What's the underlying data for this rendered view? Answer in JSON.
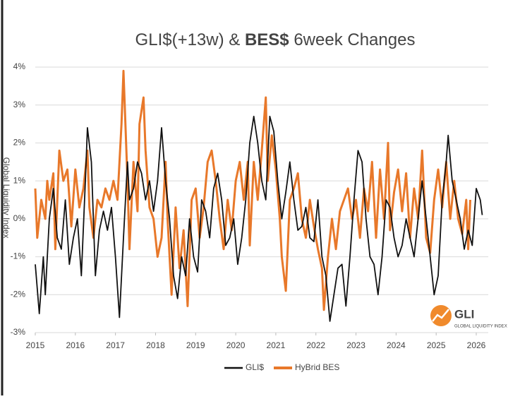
{
  "chart_data": {
    "type": "line",
    "title": {
      "prefix": "GLI$(+13w) &",
      "bold": "BES$",
      "suffix": "6week Changes"
    },
    "ylabel": "Global Liquidity Index",
    "logo": {
      "mark": "GLI",
      "caption": "GLOBAL LIQUIDITY INDEX"
    },
    "xlim": [
      2015,
      2026.3
    ],
    "xticks": [
      2015,
      2016,
      2017,
      2018,
      2019,
      2020,
      2021,
      2022,
      2023,
      2024,
      2025,
      2026
    ],
    "ylim": [
      -3,
      4
    ],
    "yticks": [
      {
        "value": -3,
        "label": "-3%"
      },
      {
        "value": -2,
        "label": "-2%"
      },
      {
        "value": -1,
        "label": "-1%"
      },
      {
        "value": 0,
        "label": "0%"
      },
      {
        "value": 1,
        "label": "1%"
      },
      {
        "value": 2,
        "label": "2%"
      },
      {
        "value": 3,
        "label": "3%"
      },
      {
        "value": 4,
        "label": "4%"
      }
    ],
    "grid": true,
    "legend": "bottom",
    "series": [
      {
        "name": "GLI$",
        "color": "#111111",
        "x": [
          2015.0,
          2015.1,
          2015.2,
          2015.25,
          2015.35,
          2015.45,
          2015.55,
          2015.65,
          2015.75,
          2015.85,
          2015.95,
          2016.05,
          2016.15,
          2016.25,
          2016.3,
          2016.4,
          2016.5,
          2016.6,
          2016.7,
          2016.8,
          2016.9,
          2017.0,
          2017.1,
          2017.2,
          2017.3,
          2017.35,
          2017.45,
          2017.55,
          2017.65,
          2017.75,
          2017.85,
          2017.95,
          2018.05,
          2018.15,
          2018.25,
          2018.35,
          2018.45,
          2018.55,
          2018.65,
          2018.75,
          2018.85,
          2018.95,
          2019.05,
          2019.15,
          2019.25,
          2019.35,
          2019.45,
          2019.55,
          2019.65,
          2019.75,
          2019.85,
          2019.95,
          2020.05,
          2020.15,
          2020.25,
          2020.35,
          2020.45,
          2020.55,
          2020.65,
          2020.75,
          2020.85,
          2020.95,
          2021.05,
          2021.15,
          2021.25,
          2021.35,
          2021.45,
          2021.55,
          2021.65,
          2021.75,
          2021.85,
          2021.95,
          2022.05,
          2022.15,
          2022.25,
          2022.35,
          2022.45,
          2022.55,
          2022.65,
          2022.75,
          2022.85,
          2022.95,
          2023.05,
          2023.15,
          2023.25,
          2023.35,
          2023.45,
          2023.55,
          2023.65,
          2023.75,
          2023.85,
          2023.95,
          2024.05,
          2024.15,
          2024.25,
          2024.35,
          2024.45,
          2024.55,
          2024.65,
          2024.75,
          2024.85,
          2024.95,
          2025.05,
          2025.15,
          2025.25,
          2025.3,
          2025.4,
          2025.5,
          2025.6,
          2025.7,
          2025.8,
          2025.9,
          2026.0,
          2026.1,
          2026.15
        ],
        "values": [
          -1.2,
          -2.5,
          -1.0,
          -2.0,
          0.0,
          0.8,
          -0.5,
          -0.8,
          0.5,
          -1.2,
          -0.5,
          0.0,
          -1.5,
          1.0,
          2.4,
          1.5,
          -1.5,
          -0.3,
          0.2,
          -0.3,
          0.3,
          -1.0,
          -2.6,
          -0.5,
          1.5,
          0.5,
          0.8,
          1.5,
          1.2,
          0.5,
          1.0,
          0.2,
          1.0,
          2.4,
          1.0,
          0.0,
          -1.5,
          -2.1,
          -1.0,
          -1.5,
          0.0,
          -1.0,
          -1.4,
          0.5,
          0.2,
          -0.5,
          0.8,
          1.2,
          0.5,
          -0.7,
          -0.5,
          0.0,
          -1.2,
          -0.5,
          0.5,
          2.0,
          2.7,
          2.0,
          1.0,
          0.5,
          2.7,
          2.3,
          1.0,
          0.0,
          0.7,
          1.5,
          0.5,
          -0.3,
          -0.2,
          0.3,
          -0.5,
          -0.6,
          0.5,
          -1.0,
          -1.5,
          -2.7,
          -2.0,
          -1.3,
          -1.2,
          -2.3,
          -1.0,
          0.5,
          1.8,
          1.5,
          0.0,
          -1.0,
          -1.2,
          -2.0,
          -1.0,
          0.5,
          0.3,
          -0.5,
          -1.0,
          -0.7,
          0.0,
          -0.5,
          -1.0,
          0.0,
          1.0,
          0.0,
          -1.0,
          -2.0,
          -1.5,
          0.5,
          1.5,
          2.2,
          1.0,
          0.5,
          0.0,
          -0.8,
          -0.3,
          -0.7,
          0.8,
          0.5,
          0.1
        ]
      },
      {
        "name": "HyBrid BES",
        "color": "#e8782a",
        "x": [
          2015.0,
          2015.05,
          2015.15,
          2015.25,
          2015.3,
          2015.35,
          2015.45,
          2015.5,
          2015.6,
          2015.7,
          2015.8,
          2015.9,
          2016.0,
          2016.1,
          2016.2,
          2016.3,
          2016.35,
          2016.45,
          2016.55,
          2016.65,
          2016.75,
          2016.85,
          2016.95,
          2017.05,
          2017.15,
          2017.2,
          2017.3,
          2017.35,
          2017.45,
          2017.55,
          2017.6,
          2017.7,
          2017.75,
          2017.85,
          2017.95,
          2018.05,
          2018.15,
          2018.25,
          2018.3,
          2018.4,
          2018.5,
          2018.6,
          2018.7,
          2018.8,
          2018.9,
          2019.0,
          2019.1,
          2019.2,
          2019.3,
          2019.4,
          2019.5,
          2019.6,
          2019.7,
          2019.8,
          2019.9,
          2020.0,
          2020.1,
          2020.2,
          2020.3,
          2020.35,
          2020.45,
          2020.55,
          2020.65,
          2020.75,
          2020.8,
          2020.9,
          2021.0,
          2021.1,
          2021.15,
          2021.25,
          2021.35,
          2021.45,
          2021.55,
          2021.65,
          2021.75,
          2021.85,
          2021.95,
          2022.05,
          2022.15,
          2022.2,
          2022.3,
          2022.4,
          2022.5,
          2022.6,
          2022.7,
          2022.8,
          2022.9,
          2023.0,
          2023.1,
          2023.2,
          2023.3,
          2023.4,
          2023.5,
          2023.6,
          2023.7,
          2023.8,
          2023.85,
          2023.95,
          2024.05,
          2024.15,
          2024.25,
          2024.35,
          2024.45,
          2024.55,
          2024.65,
          2024.75,
          2024.85,
          2024.95,
          2025.05,
          2025.15,
          2025.25,
          2025.35,
          2025.45,
          2025.55,
          2025.65,
          2025.75,
          2025.8,
          2025.85
        ],
        "values": [
          0.8,
          -0.5,
          0.5,
          0.0,
          1.0,
          0.5,
          1.2,
          -0.8,
          1.8,
          1.0,
          1.3,
          -0.2,
          1.3,
          0.3,
          0.8,
          1.8,
          0.3,
          -0.5,
          0.5,
          0.3,
          0.8,
          0.5,
          1.0,
          0.5,
          2.5,
          3.9,
          1.0,
          -0.8,
          1.5,
          0.2,
          2.5,
          3.2,
          1.8,
          0.3,
          0.0,
          -1.0,
          -0.5,
          1.5,
          0.0,
          -2.0,
          0.3,
          -1.3,
          -0.3,
          -2.3,
          0.5,
          0.8,
          -0.5,
          0.3,
          1.5,
          1.8,
          1.0,
          0.0,
          -0.8,
          0.5,
          -0.3,
          1.0,
          1.5,
          0.5,
          1.5,
          -0.7,
          1.5,
          0.5,
          1.8,
          3.2,
          1.0,
          2.2,
          1.3,
          0.0,
          -1.0,
          -1.9,
          0.5,
          0.8,
          1.2,
          0.0,
          -0.5,
          0.5,
          -0.2,
          -0.8,
          -1.3,
          -2.4,
          -1.0,
          0.0,
          -0.8,
          0.2,
          0.5,
          0.8,
          0.0,
          0.5,
          -0.5,
          0.8,
          0.2,
          1.5,
          -0.5,
          1.3,
          0.0,
          2.0,
          -0.3,
          0.7,
          1.3,
          0.2,
          1.2,
          -0.5,
          0.8,
          0.0,
          1.8,
          -0.5,
          -0.9,
          0.5,
          1.3,
          0.3,
          1.5,
          0.0,
          1.0,
          0.0,
          -0.4,
          0.5,
          -0.8,
          0.5
        ]
      }
    ]
  }
}
